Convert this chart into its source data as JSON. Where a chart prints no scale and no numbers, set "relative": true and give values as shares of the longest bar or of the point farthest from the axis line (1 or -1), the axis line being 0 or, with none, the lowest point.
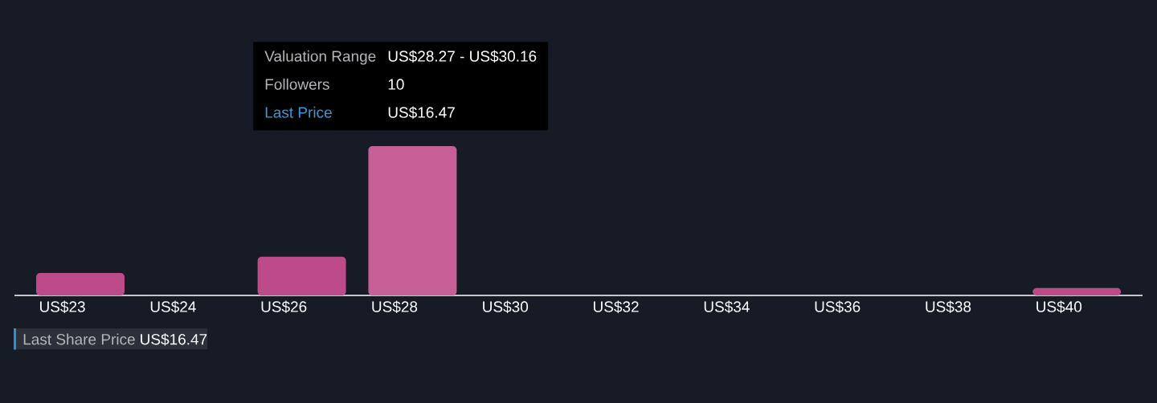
{
  "chart_data": {
    "type": "bar",
    "relative": true,
    "categories": [
      "US$23",
      "US$24",
      "US$26",
      "US$28",
      "US$30",
      "US$32",
      "US$34",
      "US$36",
      "US$38",
      "US$40"
    ],
    "values": [
      0.15,
      0,
      0.26,
      1,
      0,
      0,
      0,
      0,
      0,
      0.05
    ],
    "colors": [
      "#bd4b89",
      "#bd4b89",
      "#bd4b89",
      "#c55f96",
      "#bd4b89",
      "#bd4b89",
      "#bd4b89",
      "#bd4b89",
      "#bd4b89",
      "#bd4b89"
    ],
    "annotations": [
      "Valuation Range",
      "US$28.27 - US$30.16",
      "Followers",
      "10",
      "Last Price",
      "US$16.47",
      "Last Share Price",
      "US$16.47"
    ]
  }
}
